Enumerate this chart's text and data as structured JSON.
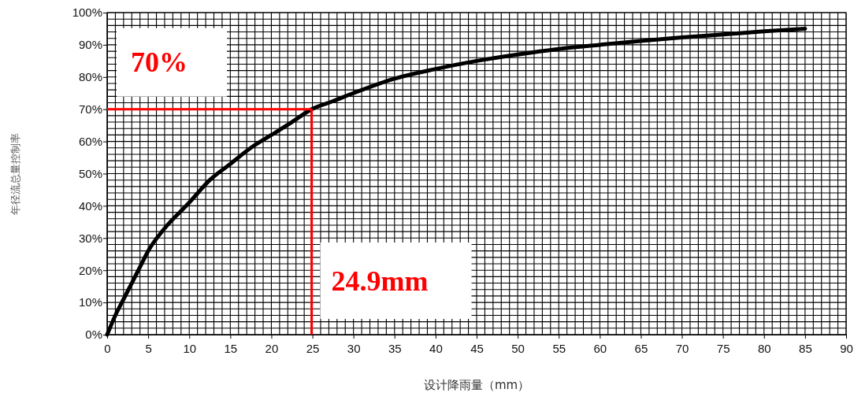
{
  "chart_data": {
    "type": "line",
    "xlabel": "设计降雨量（mm）",
    "ylabel": "年径流总量控制率",
    "x": [
      0,
      1,
      2,
      3,
      4,
      5,
      7,
      10,
      12.5,
      15,
      17.5,
      20,
      22.5,
      24.9,
      27.5,
      30,
      35,
      40,
      45,
      50,
      55,
      60,
      65,
      70,
      75,
      80,
      85
    ],
    "series": [
      {
        "color": "#000000",
        "values": [
          0,
          6,
          11,
          16,
          21,
          26,
          33,
          41,
          48,
          53,
          58,
          62,
          66,
          70,
          72.5,
          75,
          79.5,
          82.5,
          85,
          87,
          88.7,
          90,
          91.2,
          92.3,
          93.2,
          94.2,
          95
        ]
      }
    ],
    "xlim": [
      0,
      90
    ],
    "ylim": [
      0,
      100
    ],
    "xticks": [
      0,
      {
        "value": 1,
        "label": null
      },
      {
        "value": 2,
        "label": null
      },
      {
        "value": 3,
        "label": null
      },
      {
        "value": 4,
        "label": null
      },
      5,
      {
        "value": 6,
        "label": null
      },
      {
        "value": 7,
        "label": null
      },
      {
        "value": 8,
        "label": null
      },
      {
        "value": 9,
        "label": null
      },
      10,
      {
        "value": 11,
        "label": null
      },
      {
        "value": 12,
        "label": null
      },
      {
        "value": 13,
        "label": null
      },
      {
        "value": 14,
        "label": null
      },
      15,
      {
        "value": 16,
        "label": null
      },
      {
        "value": 17,
        "label": null
      },
      {
        "value": 18,
        "label": null
      },
      {
        "value": 19,
        "label": null
      },
      20,
      {
        "value": 21,
        "label": null
      },
      {
        "value": 22,
        "label": null
      },
      {
        "value": 23,
        "label": null
      },
      {
        "value": 24,
        "label": null
      },
      25,
      {
        "value": 26,
        "label": null
      },
      {
        "value": 27,
        "label": null
      },
      {
        "value": 28,
        "label": null
      },
      {
        "value": 29,
        "label": null
      },
      30,
      {
        "value": 31,
        "label": null
      },
      {
        "value": 32,
        "label": null
      },
      {
        "value": 33,
        "label": null
      },
      {
        "value": 34,
        "label": null
      },
      35,
      {
        "value": 36,
        "label": null
      },
      {
        "value": 37,
        "label": null
      },
      {
        "value": 38,
        "label": null
      },
      {
        "value": 39,
        "label": null
      },
      40,
      {
        "value": 41,
        "label": null
      },
      {
        "value": 42,
        "label": null
      },
      {
        "value": 43,
        "label": null
      },
      {
        "value": 44,
        "label": null
      },
      45,
      {
        "value": 46,
        "label": null
      },
      {
        "value": 47,
        "label": null
      },
      {
        "value": 48,
        "label": null
      },
      {
        "value": 49,
        "label": null
      },
      50,
      {
        "value": 51,
        "label": null
      },
      {
        "value": 52,
        "label": null
      },
      {
        "value": 53,
        "label": null
      },
      {
        "value": 54,
        "label": null
      },
      55,
      {
        "value": 56,
        "label": null
      },
      {
        "value": 57,
        "label": null
      },
      {
        "value": 58,
        "label": null
      },
      {
        "value": 59,
        "label": null
      },
      60,
      {
        "value": 61,
        "label": null
      },
      {
        "value": 62,
        "label": null
      },
      {
        "value": 63,
        "label": null
      },
      {
        "value": 64,
        "label": null
      },
      65,
      {
        "value": 66,
        "label": null
      },
      {
        "value": 67,
        "label": null
      },
      {
        "value": 68,
        "label": null
      },
      {
        "value": 69,
        "label": null
      },
      70,
      {
        "value": 71,
        "label": null
      },
      {
        "value": 72,
        "label": null
      },
      {
        "value": 73,
        "label": null
      },
      {
        "value": 74,
        "label": null
      },
      75,
      {
        "value": 76,
        "label": null
      },
      {
        "value": 77,
        "label": null
      },
      {
        "value": 78,
        "label": null
      },
      {
        "value": 79,
        "label": null
      },
      80,
      {
        "value": 81,
        "label": null
      },
      {
        "value": 82,
        "label": null
      },
      {
        "value": 83,
        "label": null
      },
      {
        "value": 84,
        "label": null
      },
      85,
      {
        "value": 86,
        "label": null
      },
      {
        "value": 87,
        "label": null
      },
      {
        "value": 88,
        "label": null
      },
      {
        "value": 89,
        "label": null
      },
      90
    ],
    "yticks": [
      {
        "value": 0,
        "label": "0%"
      },
      {
        "value": 2,
        "label": null
      },
      {
        "value": 4,
        "label": null
      },
      {
        "value": 6,
        "label": null
      },
      {
        "value": 8,
        "label": null
      },
      {
        "value": 10,
        "label": "10%"
      },
      {
        "value": 12,
        "label": null
      },
      {
        "value": 14,
        "label": null
      },
      {
        "value": 16,
        "label": null
      },
      {
        "value": 18,
        "label": null
      },
      {
        "value": 20,
        "label": "20%"
      },
      {
        "value": 22,
        "label": null
      },
      {
        "value": 24,
        "label": null
      },
      {
        "value": 26,
        "label": null
      },
      {
        "value": 28,
        "label": null
      },
      {
        "value": 30,
        "label": "30%"
      },
      {
        "value": 32,
        "label": null
      },
      {
        "value": 34,
        "label": null
      },
      {
        "value": 36,
        "label": null
      },
      {
        "value": 38,
        "label": null
      },
      {
        "value": 40,
        "label": "40%"
      },
      {
        "value": 42,
        "label": null
      },
      {
        "value": 44,
        "label": null
      },
      {
        "value": 46,
        "label": null
      },
      {
        "value": 48,
        "label": null
      },
      {
        "value": 50,
        "label": "50%"
      },
      {
        "value": 52,
        "label": null
      },
      {
        "value": 54,
        "label": null
      },
      {
        "value": 56,
        "label": null
      },
      {
        "value": 58,
        "label": null
      },
      {
        "value": 60,
        "label": "60%"
      },
      {
        "value": 62,
        "label": null
      },
      {
        "value": 64,
        "label": null
      },
      {
        "value": 66,
        "label": null
      },
      {
        "value": 68,
        "label": null
      },
      {
        "value": 70,
        "label": "70%"
      },
      {
        "value": 72,
        "label": null
      },
      {
        "value": 74,
        "label": null
      },
      {
        "value": 76,
        "label": null
      },
      {
        "value": 78,
        "label": null
      },
      {
        "value": 80,
        "label": "80%"
      },
      {
        "value": 82,
        "label": null
      },
      {
        "value": 84,
        "label": null
      },
      {
        "value": 86,
        "label": null
      },
      {
        "value": 88,
        "label": null
      },
      {
        "value": 90,
        "label": "90%"
      },
      {
        "value": 92,
        "label": null
      },
      {
        "value": 94,
        "label": null
      },
      {
        "value": 96,
        "label": null
      },
      {
        "value": 98,
        "label": null
      },
      {
        "value": 100,
        "label": "100%"
      }
    ],
    "grid": true,
    "marker": "none",
    "line_style": "solid",
    "ref_lines": [
      {
        "axis": "y",
        "value": 70,
        "label": "70%",
        "color": "#ff0000"
      },
      {
        "axis": "x",
        "value": 24.9,
        "label": "24.9mm",
        "color": "#ff0000"
      }
    ]
  }
}
